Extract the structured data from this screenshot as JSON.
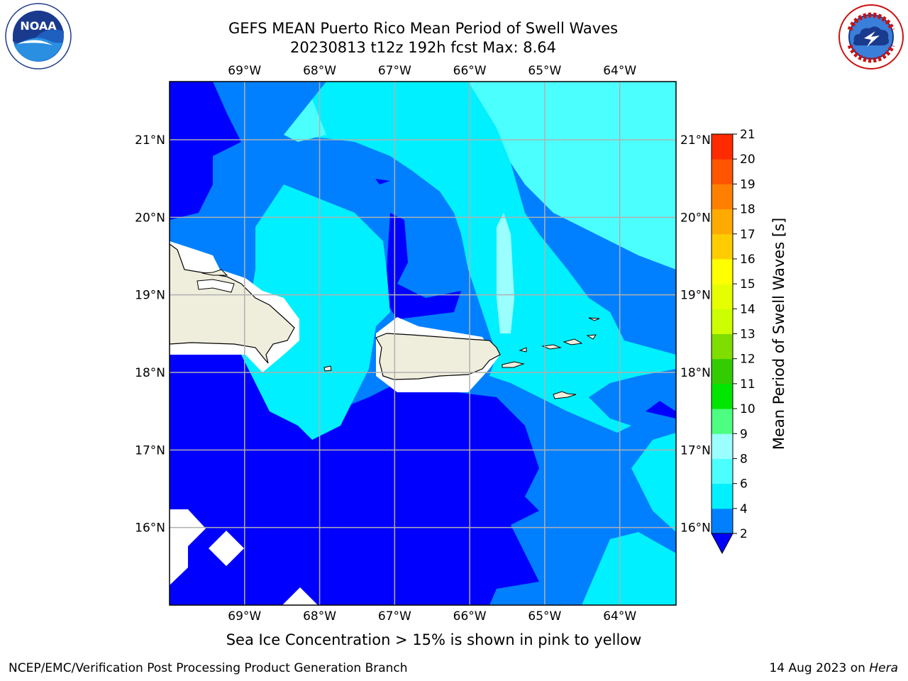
{
  "title": {
    "line1": "GEFS MEAN Puerto Rico Mean Period of Swell Waves",
    "line2": "20230813 t12z 192h fcst   Max: 8.64"
  },
  "map": {
    "lon_labels_top": [
      "69°W",
      "68°W",
      "67°W",
      "66°W",
      "65°W",
      "64°W"
    ],
    "lon_labels_bottom": [
      "69°W",
      "68°W",
      "67°W",
      "66°W",
      "65°W",
      "64°W"
    ],
    "lat_labels_left": [
      "21°N",
      "20°N",
      "19°N",
      "18°N",
      "17°N",
      "16°N"
    ],
    "lat_labels_right": [
      "21°N",
      "20°N",
      "19°N",
      "18°N",
      "17°N",
      "16°N"
    ],
    "lon_range": [
      -70.0,
      -63.25
    ],
    "lat_range": [
      15.0,
      21.75
    ],
    "land_color": "#efeedd",
    "grid_color": "#b0b0b0"
  },
  "colorbar": {
    "label": "Mean Period of Swell Waves [s]",
    "ticks": [
      "2",
      "4",
      "6",
      "8",
      "9",
      "10",
      "11",
      "12",
      "13",
      "14",
      "15",
      "16",
      "17",
      "18",
      "19",
      "20",
      "21"
    ],
    "colors": [
      "#0080ff",
      "#00f0ff",
      "#4cffff",
      "#9cffff",
      "#4dff80",
      "#00e600",
      "#33cc00",
      "#80dd00",
      "#ccff00",
      "#e6ff00",
      "#ffff00",
      "#ffcc00",
      "#ffaa00",
      "#ff8000",
      "#ff5500",
      "#ff2b00"
    ],
    "under_color": "#0000ff"
  },
  "subtitle": "Sea Ice Concentration > 15% is shown in pink to yellow",
  "footer": {
    "left": "NCEP/EMC/Verification Post Processing Product Generation Branch",
    "right_prefix": "14 Aug 2023 on ",
    "right_host": "Hera"
  },
  "logos": {
    "left_text": "NOAA",
    "right_text": "NATIONAL WEATHER SERVICE"
  }
}
